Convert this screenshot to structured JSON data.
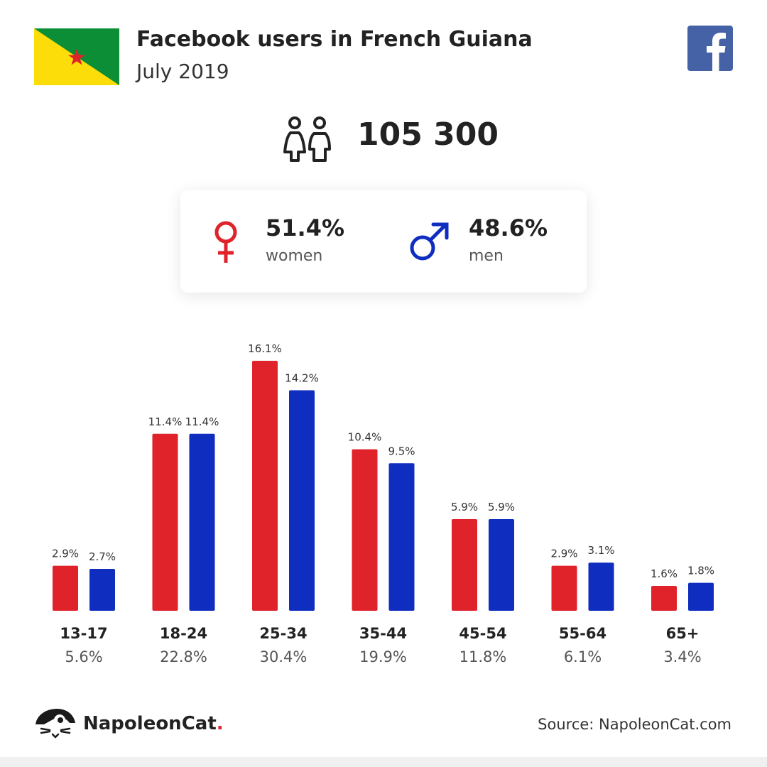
{
  "header": {
    "title": "Facebook users in French Guiana",
    "subtitle": "July 2019",
    "flag_icon": "french-guiana-flag",
    "platform_icon": "facebook-icon"
  },
  "total": {
    "icon": "people-icon",
    "value": "105 300"
  },
  "gender": {
    "women": {
      "icon": "female-symbol-icon",
      "percent": "51.4%",
      "label": "women",
      "color": "#e0222a"
    },
    "men": {
      "icon": "male-symbol-icon",
      "percent": "48.6%",
      "label": "men",
      "color": "#0f2dbe"
    }
  },
  "colors": {
    "women": "#e0222a",
    "men": "#0f2dbe",
    "facebook": "#4462a5",
    "flag_green": "#0b8e36",
    "flag_yellow": "#fcdd09"
  },
  "chart_data": {
    "type": "bar",
    "categories": [
      "13-17",
      "18-24",
      "25-34",
      "35-44",
      "45-54",
      "55-64",
      "65+"
    ],
    "category_totals": [
      "5.6%",
      "22.8%",
      "30.4%",
      "19.9%",
      "11.8%",
      "6.1%",
      "3.4%"
    ],
    "series": [
      {
        "name": "women",
        "color": "#e0222a",
        "values": [
          2.9,
          11.4,
          16.1,
          10.4,
          5.9,
          2.9,
          1.6
        ],
        "labels": [
          "2.9%",
          "11.4%",
          "16.1%",
          "10.4%",
          "5.9%",
          "2.9%",
          "1.6%"
        ]
      },
      {
        "name": "men",
        "color": "#0f2dbe",
        "values": [
          2.7,
          11.4,
          14.2,
          9.5,
          5.9,
          3.1,
          1.8
        ],
        "labels": [
          "2.7%",
          "11.4%",
          "14.2%",
          "9.5%",
          "5.9%",
          "3.1%",
          "1.8%"
        ]
      }
    ],
    "ylim": [
      0,
      16.1
    ],
    "grid": false,
    "legend": "none"
  },
  "footer": {
    "brand_icon": "napoleoncat-logo-icon",
    "brand_name": "NapoleonCat",
    "brand_dot": ".",
    "source": "Source: NapoleonCat.com"
  }
}
